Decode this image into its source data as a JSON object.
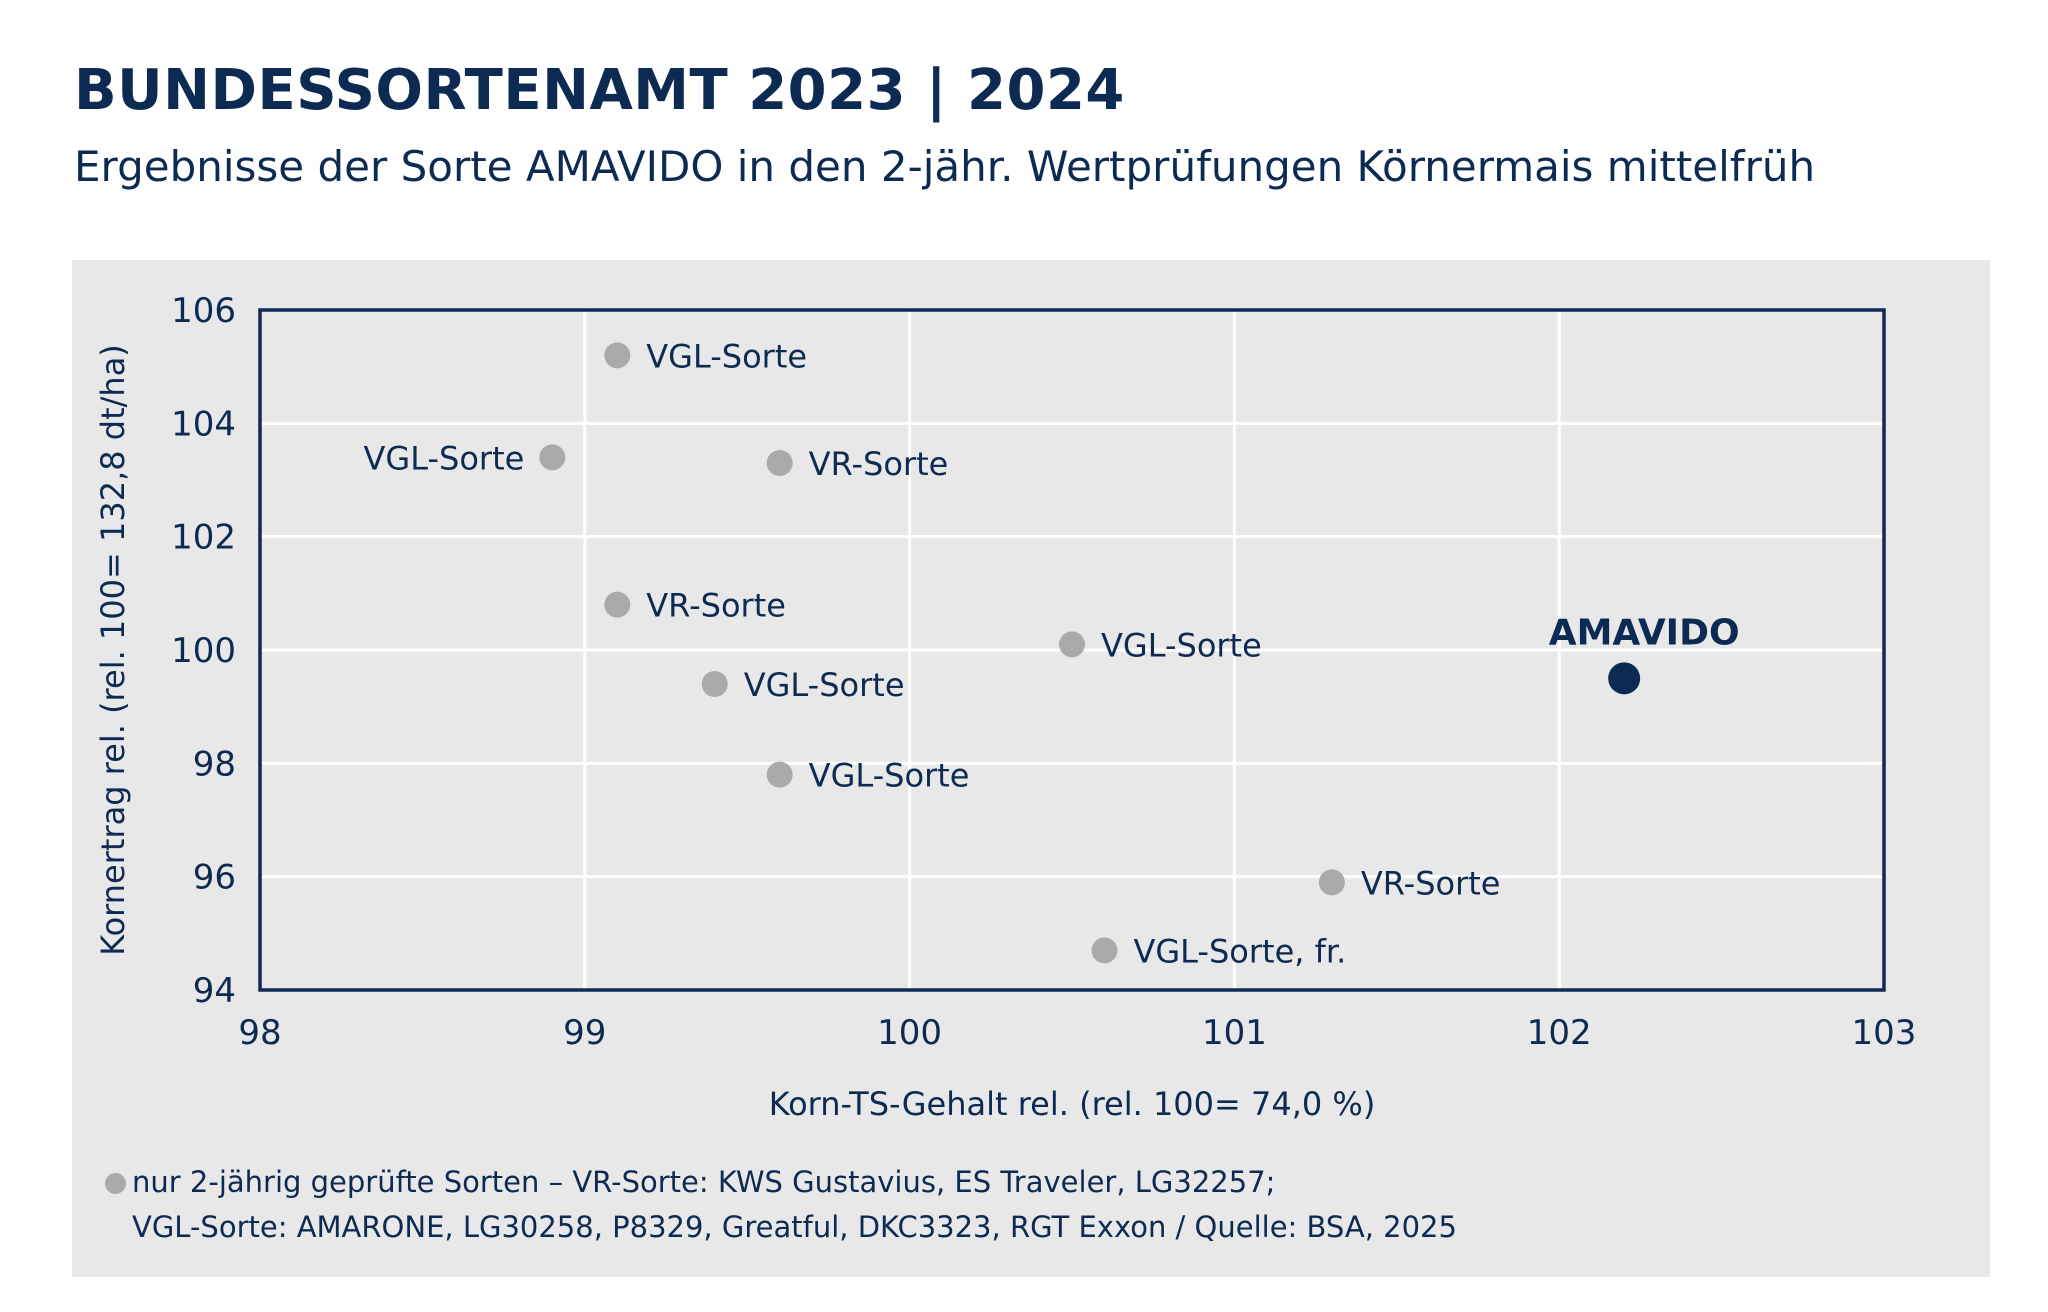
{
  "header": {
    "title": "BUNDESSORTENAMT 2023 | 2024",
    "subtitle": "Ergebnisse der Sorte AMAVIDO in den 2-jähr. Wertprüfungen Körnermais mittelfrüh"
  },
  "colors": {
    "navy": "#0d2a52",
    "gray_point": "#aaaaaa",
    "panel_bg": "#e8e8e8",
    "grid": "#ffffff"
  },
  "chart_data": {
    "type": "scatter",
    "xlabel": "Korn-TS-Gehalt rel. (rel. 100= 74,0 %)",
    "ylabel": "Kornertrag rel. (rel. 100= 132,8 dt/ha)",
    "xlim": [
      98,
      103
    ],
    "ylim": [
      94,
      106
    ],
    "xticks": [
      98,
      99,
      100,
      101,
      102,
      103
    ],
    "yticks": [
      94,
      96,
      98,
      100,
      102,
      104,
      106
    ],
    "grid": true,
    "points": [
      {
        "label": "VGL-Sorte",
        "x": 99.1,
        "y": 105.2,
        "highlight": false,
        "label_side": "right"
      },
      {
        "label": "VGL-Sorte",
        "x": 98.9,
        "y": 103.4,
        "highlight": false,
        "label_side": "left"
      },
      {
        "label": "VR-Sorte",
        "x": 99.6,
        "y": 103.3,
        "highlight": false,
        "label_side": "right"
      },
      {
        "label": "VR-Sorte",
        "x": 99.1,
        "y": 100.8,
        "highlight": false,
        "label_side": "right"
      },
      {
        "label": "VGL-Sorte",
        "x": 100.5,
        "y": 100.1,
        "highlight": false,
        "label_side": "right"
      },
      {
        "label": "VGL-Sorte",
        "x": 99.4,
        "y": 99.4,
        "highlight": false,
        "label_side": "right"
      },
      {
        "label": "VGL-Sorte",
        "x": 99.6,
        "y": 97.8,
        "highlight": false,
        "label_side": "right"
      },
      {
        "label": "VR-Sorte",
        "x": 101.3,
        "y": 95.9,
        "highlight": false,
        "label_side": "right"
      },
      {
        "label": "VGL-Sorte, fr.",
        "x": 100.6,
        "y": 94.7,
        "highlight": false,
        "label_side": "right"
      },
      {
        "label": "AMAVIDO",
        "x": 102.2,
        "y": 99.5,
        "highlight": true,
        "label_side": "top"
      }
    ]
  },
  "footnote": {
    "line1": "nur 2-jährig geprüfte Sorten – VR-Sorte: KWS Gustavius, ES Traveler, LG32257;",
    "line2": "VGL-Sorte: AMARONE, LG30258, P8329, Greatful, DKC3323, RGT Exxon / Quelle: BSA, 2025"
  }
}
